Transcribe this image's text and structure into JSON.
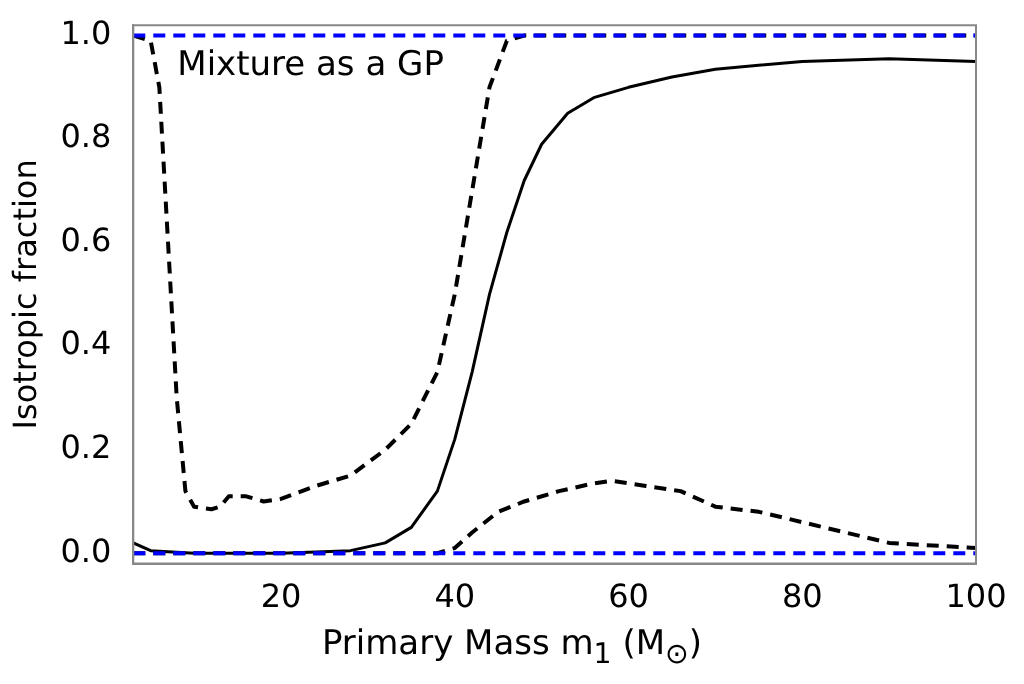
{
  "chart_data": {
    "type": "line",
    "xlabel": "Primary Mass m$_{1}$ (M$_{⊙}$)",
    "ylabel": "Isotropic fraction",
    "annotations": [
      "Mixture as a GP"
    ],
    "xlim": [
      3,
      100
    ],
    "ylim": [
      -0.02,
      1.02
    ],
    "xticks": [
      20,
      40,
      60,
      80,
      100
    ],
    "yticks": [
      {
        "value": 0,
        "label": "0.0"
      },
      0.2,
      0.4,
      0.6,
      0.8,
      {
        "value": 1,
        "label": "1.0"
      }
    ],
    "grid": false,
    "legend": false,
    "ref_lines": [
      {
        "axis": "y",
        "value": 0,
        "color": "#0000ff",
        "line_style": "dashed"
      },
      {
        "axis": "y",
        "value": 1,
        "color": "#0000ff",
        "line_style": "dashed"
      }
    ],
    "series": [
      {
        "color": "#000000",
        "line_style": "solid",
        "x": [
          3,
          5,
          10,
          20,
          28,
          32,
          35,
          38,
          40,
          42,
          44,
          46,
          48,
          50,
          53,
          56,
          60,
          65,
          70,
          80,
          90,
          100
        ],
        "values": [
          0.02,
          0.005,
          0,
          0,
          0.005,
          0.02,
          0.05,
          0.12,
          0.22,
          0.35,
          0.5,
          0.62,
          0.72,
          0.79,
          0.85,
          0.88,
          0.9,
          0.92,
          0.935,
          0.95,
          0.955,
          0.95
        ]
      },
      {
        "color": "#000000",
        "line_style": "dashed",
        "x": [
          3,
          5,
          6,
          7,
          8,
          9,
          10,
          12,
          13,
          14,
          16,
          18,
          20,
          24,
          28,
          32,
          35,
          38,
          40,
          42,
          44,
          46,
          48,
          100
        ],
        "values": [
          1,
          0.99,
          0.9,
          0.6,
          0.3,
          0.12,
          0.09,
          0.085,
          0.09,
          0.11,
          0.11,
          0.1,
          0.105,
          0.13,
          0.15,
          0.2,
          0.25,
          0.35,
          0.5,
          0.7,
          0.9,
          0.99,
          1,
          1
        ]
      },
      {
        "color": "#000000",
        "line_style": "dashed",
        "x": [
          3,
          38,
          40,
          42,
          45,
          48,
          52,
          56,
          58,
          62,
          66,
          70,
          75,
          80,
          85,
          90,
          100
        ],
        "values": [
          0,
          0,
          0.01,
          0.04,
          0.08,
          0.1,
          0.12,
          0.135,
          0.14,
          0.13,
          0.12,
          0.09,
          0.08,
          0.06,
          0.04,
          0.02,
          0.01
        ]
      }
    ]
  }
}
